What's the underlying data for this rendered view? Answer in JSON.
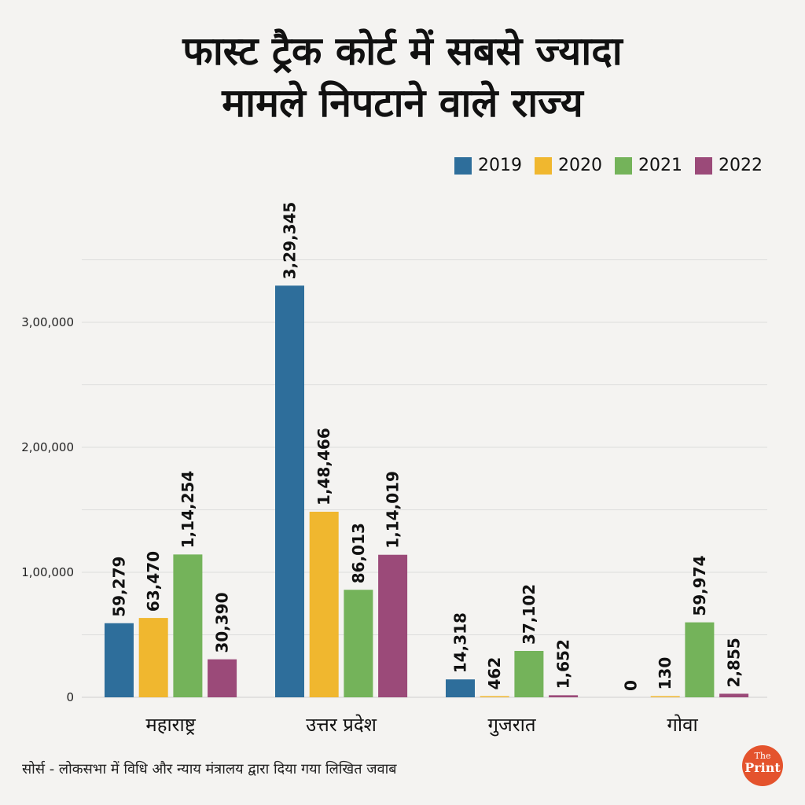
{
  "header": {
    "title_line1": "फास्ट ट्रैक कोर्ट में सबसे ज्यादा",
    "title_line2": "मामले निपटाने वाले राज्य"
  },
  "footer": {
    "source": "सोर्स - लोकसभा में विधि और न्याय मंत्रालय द्वारा दिया गया लिखित जवाब",
    "logo_top": "The",
    "logo_bottom": "Print"
  },
  "colors": {
    "accent": "#e4532d"
  },
  "chart_data": {
    "type": "bar",
    "title": "फास्ट ट्रैक कोर्ट में सबसे ज्यादा मामले निपटाने वाले राज्य",
    "categories": [
      "महाराष्ट्र",
      "उत्तर प्रदेश",
      "गुजरात",
      "गोवा"
    ],
    "series": [
      {
        "name": "2019",
        "color": "#2e6e9b",
        "values": [
          59279,
          329345,
          14318,
          0
        ],
        "labels": [
          "59,279",
          "3,29,345",
          "14,318",
          "0"
        ]
      },
      {
        "name": "2020",
        "color": "#f0b72f",
        "values": [
          63470,
          148466,
          462,
          130
        ],
        "labels": [
          "63,470",
          "1,48,466",
          "462",
          "130"
        ]
      },
      {
        "name": "2021",
        "color": "#74b35a",
        "values": [
          114254,
          86013,
          37102,
          59974
        ],
        "labels": [
          "1,14,254",
          "86,013",
          "37,102",
          "59,974"
        ]
      },
      {
        "name": "2022",
        "color": "#9b4a79",
        "values": [
          30390,
          114019,
          1652,
          2855
        ],
        "labels": [
          "30,390",
          "1,14,019",
          "1,652",
          "2,855"
        ]
      }
    ],
    "yticks": [
      0,
      100000,
      200000,
      300000
    ],
    "ytick_labels": [
      "0",
      "1,00,000",
      "2,00,000",
      "3,00,000"
    ],
    "ylim": [
      0,
      350000
    ],
    "grid": true,
    "legend_position": "top-right"
  }
}
